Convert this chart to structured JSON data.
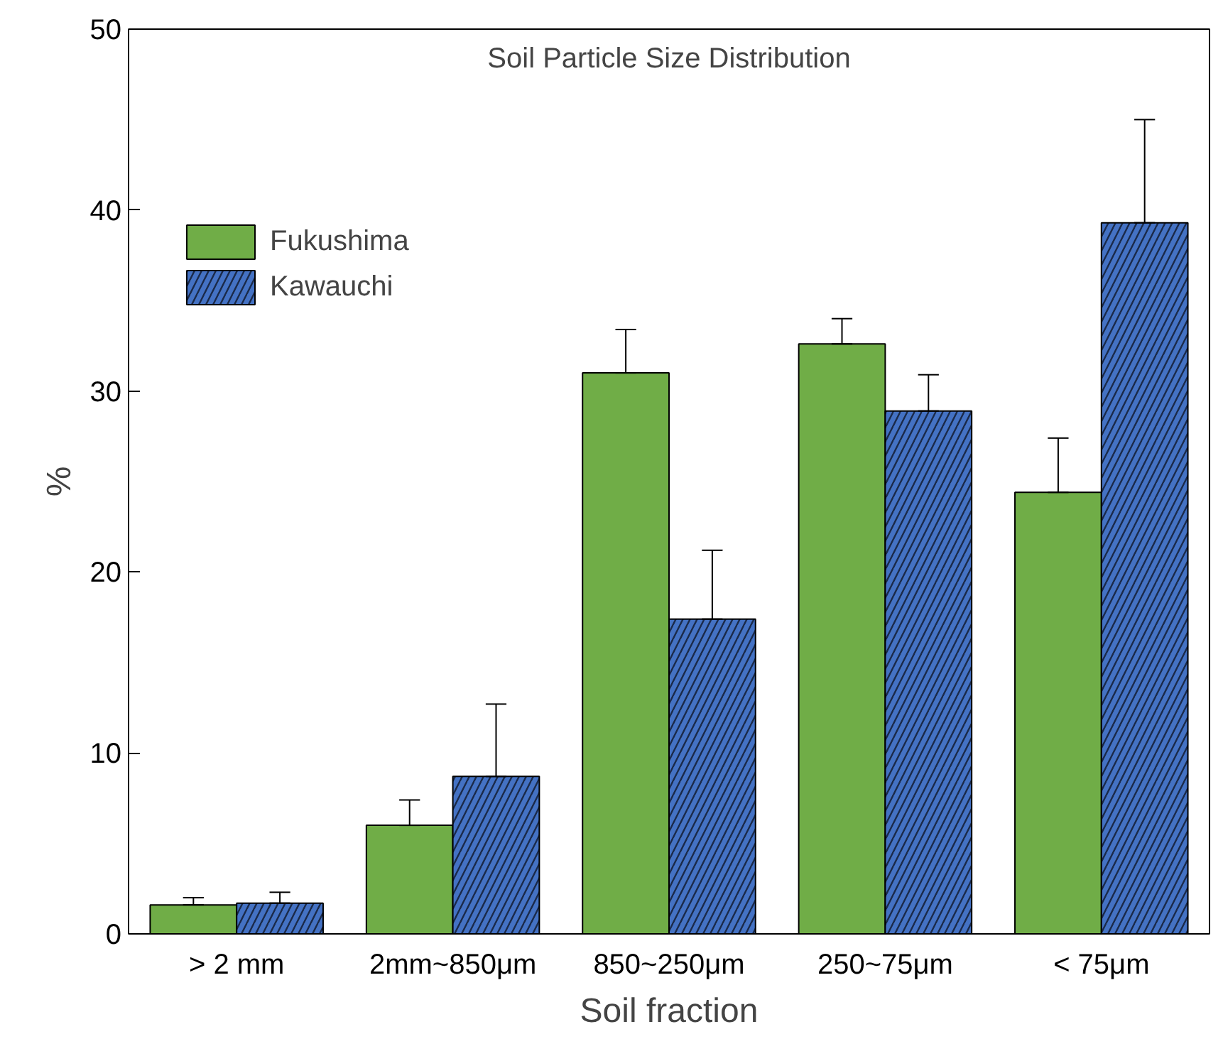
{
  "chart_data": {
    "type": "bar",
    "title": "Soil Particle Size Distribution",
    "xlabel": "Soil fraction",
    "ylabel": "%",
    "categories": [
      "> 2 mm",
      "2mm~850μm",
      "850~250μm",
      "250~75μm",
      "< 75μm"
    ],
    "series": [
      {
        "name": "Fukushima",
        "color": "#70ad47",
        "values": [
          1.6,
          6.0,
          31.0,
          32.6,
          24.4
        ],
        "errors": [
          [
            1.6,
            2.0
          ],
          [
            6.0,
            7.4
          ],
          [
            31.0,
            33.4
          ],
          [
            32.6,
            34.0
          ],
          [
            24.4,
            27.4
          ]
        ]
      },
      {
        "name": "Kawauchi",
        "color": "#4472c4",
        "values": [
          1.7,
          8.7,
          17.4,
          28.9,
          39.3
        ],
        "errors": [
          [
            1.7,
            2.3
          ],
          [
            8.7,
            12.7
          ],
          [
            17.4,
            21.2
          ],
          [
            28.9,
            30.9
          ],
          [
            39.3,
            45.0
          ]
        ]
      }
    ],
    "ylim": [
      0,
      50
    ],
    "yticks": [
      0,
      10,
      20,
      30,
      40,
      50
    ],
    "grid": false,
    "legend": "top left"
  }
}
